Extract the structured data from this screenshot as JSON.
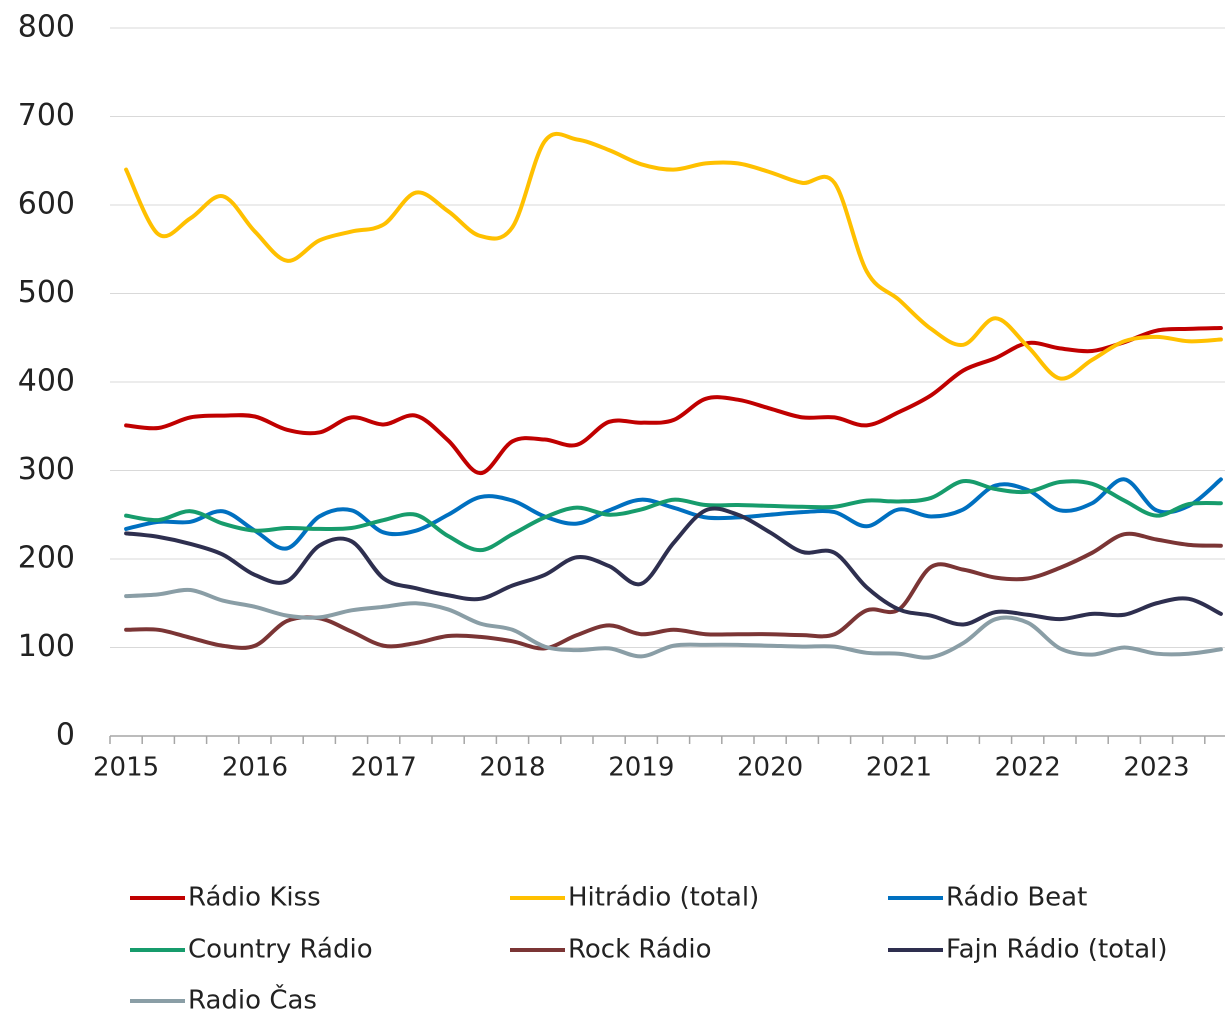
{
  "chart_data": {
    "type": "line",
    "categories": [
      "2015",
      null,
      null,
      null,
      "2016",
      null,
      null,
      null,
      "2017",
      null,
      null,
      null,
      "2018",
      null,
      null,
      null,
      "2019",
      null,
      null,
      null,
      "2020",
      null,
      null,
      null,
      "2021",
      null,
      null,
      null,
      "2022",
      null,
      null,
      null,
      "2023",
      null,
      null
    ],
    "ylim": [
      0,
      800
    ],
    "yticks": [
      0,
      100,
      200,
      300,
      400,
      500,
      600,
      700,
      800
    ],
    "grid": true,
    "legend": "bottom",
    "series": [
      {
        "name": "Rádio Kiss",
        "color": "#c00000",
        "values": [
          351,
          348,
          360,
          362,
          361,
          346,
          343,
          360,
          352,
          362,
          334,
          297,
          333,
          335,
          329,
          355,
          354,
          357,
          381,
          380,
          370,
          360,
          360,
          351,
          366,
          385,
          413,
          427,
          444,
          438,
          435,
          445,
          458,
          460,
          461
        ]
      },
      {
        "name": "Hitrádio (total)",
        "color": "#ffc000",
        "values": [
          640,
          567,
          585,
          610,
          570,
          537,
          560,
          570,
          578,
          614,
          593,
          565,
          575,
          672,
          674,
          662,
          646,
          640,
          647,
          647,
          637,
          625,
          625,
          525,
          493,
          460,
          442,
          472,
          440,
          404,
          425,
          446,
          451,
          446,
          448
        ]
      },
      {
        "name": "Rádio Beat",
        "color": "#0070c0",
        "values": [
          234,
          242,
          242,
          254,
          232,
          212,
          248,
          255,
          230,
          232,
          250,
          270,
          266,
          248,
          240,
          255,
          267,
          258,
          247,
          247,
          250,
          253,
          253,
          237,
          256,
          248,
          256,
          283,
          278,
          255,
          263,
          290,
          255,
          260,
          290
        ]
      },
      {
        "name": "Country Rádio",
        "color": "#179c6c",
        "values": [
          249,
          244,
          254,
          240,
          232,
          235,
          234,
          235,
          244,
          250,
          226,
          210,
          228,
          247,
          258,
          250,
          256,
          267,
          261,
          261,
          260,
          259,
          259,
          266,
          265,
          269,
          288,
          279,
          276,
          287,
          285,
          266,
          249,
          262,
          263
        ]
      },
      {
        "name": "Rock Rádio",
        "color": "#7b3535",
        "values": [
          120,
          120,
          111,
          102,
          102,
          130,
          133,
          118,
          102,
          105,
          113,
          112,
          107,
          99,
          114,
          125,
          115,
          120,
          115,
          115,
          115,
          114,
          115,
          142,
          143,
          191,
          188,
          179,
          178,
          190,
          207,
          228,
          222,
          216,
          215
        ]
      },
      {
        "name": "Fajn Rádio (total)",
        "color": "#2e2f4f",
        "values": [
          229,
          225,
          217,
          205,
          182,
          175,
          215,
          220,
          178,
          167,
          159,
          155,
          170,
          182,
          202,
          192,
          172,
          218,
          255,
          250,
          230,
          208,
          207,
          168,
          143,
          136,
          126,
          140,
          137,
          132,
          138,
          137,
          150,
          155,
          138
        ]
      },
      {
        "name": "Radio Čas",
        "color": "#8a9ea6",
        "values": [
          158,
          160,
          165,
          153,
          146,
          136,
          134,
          142,
          146,
          150,
          143,
          127,
          120,
          101,
          97,
          99,
          90,
          102,
          103,
          103,
          102,
          101,
          101,
          94,
          93,
          89,
          105,
          132,
          128,
          99,
          92,
          100,
          93,
          93,
          98
        ]
      }
    ]
  }
}
